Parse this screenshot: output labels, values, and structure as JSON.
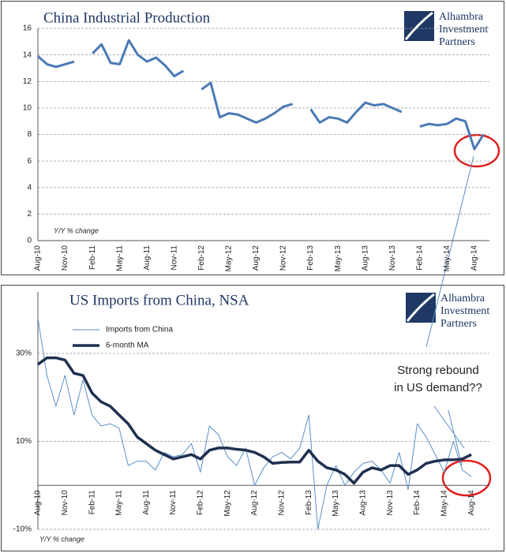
{
  "logo": [
    "Alhambra",
    "Investment",
    "Partners"
  ],
  "chart_data": [
    {
      "type": "line",
      "title": "China Industrial Production",
      "axis_note": "Y/Y % change",
      "categories": [
        "Aug-10",
        null,
        null,
        "Nov-10",
        null,
        null,
        "Feb-11",
        null,
        null,
        "May-11",
        null,
        null,
        "Aug-11",
        null,
        null,
        "Nov-11",
        null,
        null,
        "Feb-12",
        null,
        null,
        "May-12",
        null,
        null,
        "Aug-12",
        null,
        null,
        "Nov-12",
        null,
        null,
        "Feb-13",
        null,
        null,
        "May-13",
        null,
        null,
        "Aug-13",
        null,
        null,
        "Nov-13",
        null,
        null,
        "Feb-14",
        null,
        null,
        "May-14",
        null,
        null,
        "Aug-14",
        null
      ],
      "series": [
        {
          "name": "China Industrial Production",
          "color": "#4a7ab5",
          "values": [
            13.9,
            13.3,
            13.1,
            13.3,
            13.5,
            null,
            14.1,
            14.8,
            13.4,
            13.3,
            15.1,
            14.0,
            13.5,
            13.8,
            13.2,
            12.4,
            12.8,
            null,
            11.4,
            11.9,
            9.3,
            9.6,
            9.5,
            9.2,
            8.9,
            9.2,
            9.6,
            10.1,
            10.3,
            null,
            9.9,
            8.9,
            9.3,
            9.2,
            8.9,
            9.7,
            10.4,
            10.2,
            10.3,
            10.0,
            9.7,
            null,
            8.6,
            8.8,
            8.7,
            8.8,
            9.2,
            9.0,
            6.9,
            8.0
          ]
        }
      ],
      "ylim": [
        0,
        16
      ],
      "yticks": [
        0,
        2,
        4,
        6,
        8,
        10,
        12,
        14,
        16
      ],
      "grid": true,
      "legend": false
    },
    {
      "type": "line",
      "title": "US Imports from China, NSA",
      "axis_note": "Y/Y % change",
      "annotations": [
        "Strong rebound",
        "in US demand??"
      ],
      "categories": [
        "Aug-10",
        null,
        null,
        "Nov-10",
        null,
        null,
        "Feb-11",
        null,
        null,
        "May-11",
        null,
        null,
        "Aug-11",
        null,
        null,
        "Nov-11",
        null,
        null,
        "Feb-12",
        null,
        null,
        "May-12",
        null,
        null,
        "Aug-12",
        null,
        null,
        "Nov-12",
        null,
        null,
        "Feb-13",
        null,
        null,
        "May-13",
        null,
        null,
        "Aug-13",
        null,
        null,
        "Nov-13",
        null,
        null,
        "Feb-14",
        null,
        null,
        "May-14",
        null,
        null,
        "Aug-14"
      ],
      "series": [
        {
          "name": "Imports from China",
          "color": "#5b8fc9",
          "width": 1,
          "values": [
            38,
            25,
            18,
            25,
            16,
            24,
            16,
            13.5,
            14,
            13,
            4.5,
            5.5,
            5.5,
            3.5,
            7.5,
            6.5,
            7,
            9.5,
            3,
            13.5,
            11.5,
            6.5,
            4.5,
            8.5,
            0,
            4,
            6.5,
            7.5,
            6,
            8.5,
            16,
            -10,
            0,
            4.5,
            0,
            3,
            5,
            5.5,
            3.5,
            0.5,
            7.5,
            -1,
            14,
            11,
            7,
            3,
            10,
            3.5,
            2
          ]
        },
        {
          "name": "6-month MA",
          "color": "#1f3050",
          "width": 3.5,
          "values": [
            27.5,
            29,
            29,
            28.5,
            25.5,
            25,
            21,
            19,
            18,
            16,
            14,
            11,
            9.5,
            8,
            7,
            6,
            6.5,
            7,
            6,
            8,
            8.5,
            8.5,
            8.2,
            8,
            7.5,
            6.5,
            5,
            5.2,
            5.3,
            5.3,
            8,
            5.5,
            4,
            3.5,
            2.5,
            0.5,
            3,
            4,
            3.5,
            4.5,
            4.5,
            2.5,
            3.5,
            5,
            5.5,
            5.8,
            5.8,
            6,
            7
          ]
        }
      ],
      "ylim": [
        -10,
        44
      ],
      "yticks": [
        {
          "value": -10,
          "label": "-10%"
        },
        {
          "value": 10,
          "label": "10%"
        },
        {
          "value": 30,
          "label": "30%"
        }
      ],
      "grid": true,
      "legend": "upper left"
    }
  ]
}
